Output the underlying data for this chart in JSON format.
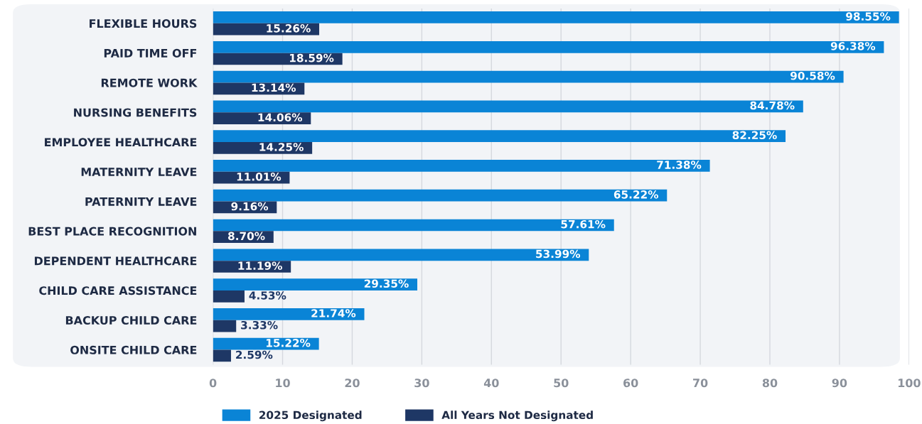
{
  "chart_data": {
    "type": "bar",
    "orientation": "horizontal",
    "categories": [
      "FLEXIBLE HOURS",
      "PAID TIME OFF",
      "REMOTE WORK",
      "NURSING BENEFITS",
      "EMPLOYEE HEALTHCARE",
      "MATERNITY LEAVE",
      "PATERNITY LEAVE",
      "BEST PLACE RECOGNITION",
      "DEPENDENT HEALTHCARE",
      "CHILD CARE ASSISTANCE",
      "BACKUP CHILD CARE",
      "ONSITE CHILD CARE"
    ],
    "series": [
      {
        "name": "2025 Designated",
        "color": "#0a84d6",
        "values": [
          98.55,
          96.38,
          90.58,
          84.78,
          82.25,
          71.38,
          65.22,
          57.61,
          53.99,
          29.35,
          21.74,
          15.22
        ],
        "value_labels": [
          "98.55%",
          "96.38%",
          "90.58%",
          "84.78%",
          "82.25%",
          "71.38%",
          "65.22%",
          "57.61%",
          "53.99%",
          "29.35%",
          "21.74%",
          "15.22%"
        ]
      },
      {
        "name": "All Years Not Designated",
        "color": "#1e3765",
        "values": [
          15.26,
          18.59,
          13.14,
          14.06,
          14.25,
          11.01,
          9.16,
          8.7,
          11.19,
          4.53,
          3.33,
          2.59
        ],
        "value_labels": [
          "15.26%",
          "18.59%",
          "13.14%",
          "14.06%",
          "14.25%",
          "11.01%",
          "9.16%",
          "8.70%",
          "11.19%",
          "4.53%",
          "3.33%",
          "2.59%"
        ]
      }
    ],
    "xlim": [
      0,
      100
    ],
    "xticks": [
      0,
      10,
      20,
      30,
      40,
      50,
      60,
      70,
      80,
      90,
      100
    ],
    "grid": "x",
    "legend": "bottom"
  }
}
